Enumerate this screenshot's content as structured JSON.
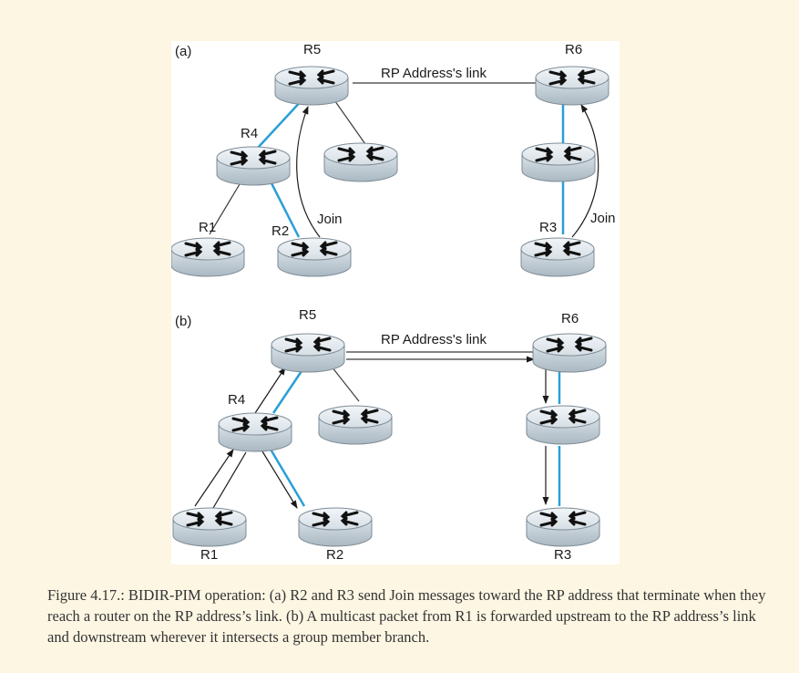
{
  "panels": [
    {
      "tag": "(a)",
      "routers": [
        {
          "id": "R5",
          "label": "R5"
        },
        {
          "id": "R6",
          "label": "R6"
        },
        {
          "id": "R4",
          "label": "R4"
        },
        {
          "id": "R1",
          "label": "R1"
        },
        {
          "id": "R2",
          "label": "R2"
        },
        {
          "id": "R3",
          "label": "R3"
        }
      ],
      "link_label": "RP Address's link",
      "join_labels": [
        "Join",
        "Join"
      ]
    },
    {
      "tag": "(b)",
      "routers": [
        {
          "id": "R5",
          "label": "R5"
        },
        {
          "id": "R6",
          "label": "R6"
        },
        {
          "id": "R4",
          "label": "R4"
        },
        {
          "id": "R1",
          "label": "R1"
        },
        {
          "id": "R2",
          "label": "R2"
        },
        {
          "id": "R3",
          "label": "R3"
        }
      ],
      "link_label": "RP Address's link"
    }
  ],
  "colors": {
    "member_branch": "#2a9fd6",
    "link": "#3a3a3a",
    "router_body": "#c9d4dc",
    "router_top": "#e6edf2"
  },
  "caption": "Figure 4.17.: BIDIR-PIM operation: (a) R2 and R3 send Join messages toward the RP address that terminate when they reach a router on the RP address’s link. (b) A multicast packet from R1 is forwarded upstream to the RP address’s link and downstream wherever it intersects a group member branch."
}
